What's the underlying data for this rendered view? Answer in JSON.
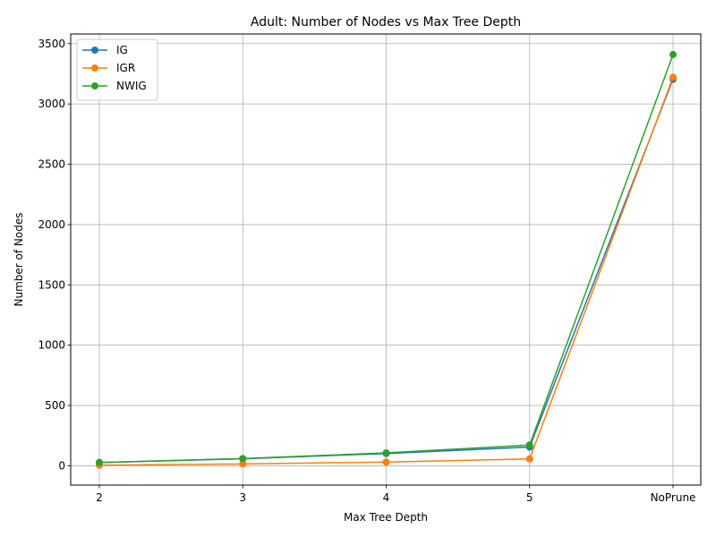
{
  "chart_data": {
    "type": "line",
    "title": "Adult: Number of Nodes vs Max Tree Depth",
    "xlabel": "Max Tree Depth",
    "ylabel": "Number of Nodes",
    "categories": [
      "2",
      "3",
      "4",
      "5",
      "NoPrune"
    ],
    "ylim": [
      -160,
      3580
    ],
    "yticks": [
      0,
      500,
      1000,
      1500,
      2000,
      2500,
      3000,
      3500
    ],
    "grid": true,
    "legend_position": "top-left",
    "series": [
      {
        "name": "IG",
        "color": "#1f77b4",
        "values": [
          27,
          58,
          102,
          155,
          3205
        ]
      },
      {
        "name": "IGR",
        "color": "#ff7f0e",
        "values": [
          5,
          15,
          31,
          57,
          3222
        ]
      },
      {
        "name": "NWIG",
        "color": "#2ca02c",
        "values": [
          27,
          60,
          107,
          172,
          3410
        ]
      }
    ]
  }
}
